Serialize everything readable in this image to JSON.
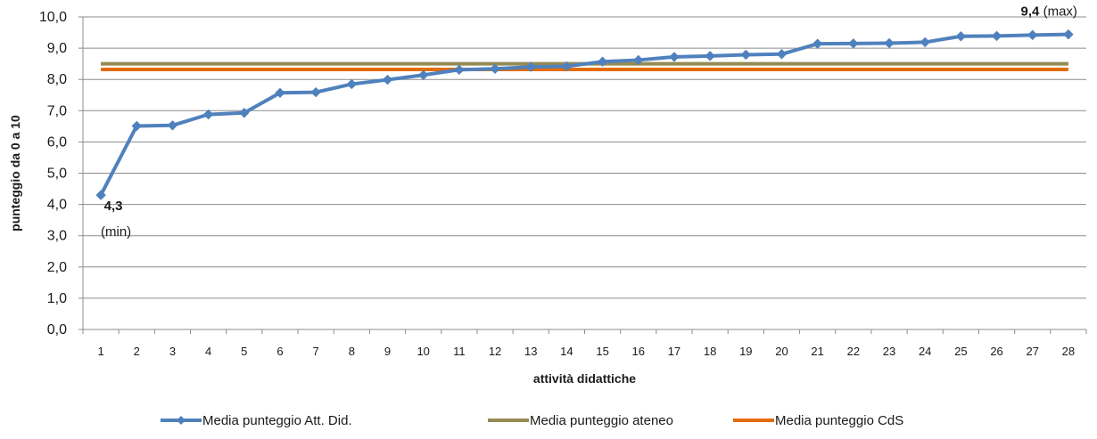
{
  "chart_data": {
    "type": "line",
    "title": "",
    "xlabel": "attività didattiche",
    "ylabel": "punteggio da 0 a 10",
    "ylim": [
      0,
      10
    ],
    "y_ticks": [
      "0,0",
      "1,0",
      "2,0",
      "3,0",
      "4,0",
      "5,0",
      "6,0",
      "7,0",
      "8,0",
      "9,0",
      "10,0"
    ],
    "categories": [
      "1",
      "2",
      "3",
      "4",
      "5",
      "6",
      "7",
      "8",
      "9",
      "10",
      "11",
      "12",
      "13",
      "14",
      "15",
      "16",
      "17",
      "18",
      "19",
      "20",
      "21",
      "22",
      "23",
      "24",
      "25",
      "26",
      "27",
      "28"
    ],
    "grid": true,
    "legend_position": "bottom",
    "series": [
      {
        "name": "Media punteggio Att. Did.",
        "color": "#4F81BD",
        "marker": "diamond",
        "values": [
          4.3,
          6.51,
          6.53,
          6.88,
          6.93,
          7.57,
          7.59,
          7.85,
          7.99,
          8.14,
          8.31,
          8.34,
          8.4,
          8.42,
          8.57,
          8.62,
          8.72,
          8.75,
          8.79,
          8.81,
          9.14,
          9.15,
          9.16,
          9.19,
          9.38,
          9.39,
          9.42,
          9.44
        ]
      },
      {
        "name": "Media punteggio ateneo",
        "color": "#948A54",
        "constant": 8.5
      },
      {
        "name": "Media punteggio CdS",
        "color": "#E36C09",
        "constant": 8.32
      }
    ],
    "annotations": {
      "min": {
        "value": "4,3",
        "label": "(min)"
      },
      "max": {
        "value": "9,4",
        "label": "(max)"
      }
    }
  }
}
